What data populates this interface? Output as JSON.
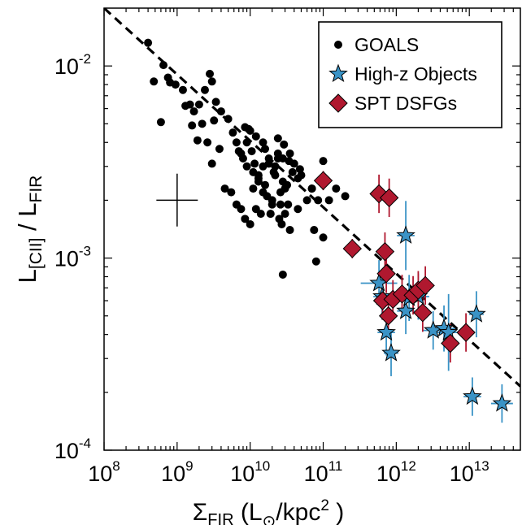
{
  "chart_data": {
    "type": "scatter",
    "title": "",
    "xlabel": {
      "main": "Σ",
      "sub": "FIR",
      "rest": " (L",
      "odot": "⊙",
      "unit": "/kpc",
      "sup": "2",
      "close": " )"
    },
    "ylabel": {
      "l1": "L",
      "sub1": "[CII]",
      "slash": " / L",
      "sub2": "FIR"
    },
    "x_scale": "log",
    "y_scale": "log",
    "xlim": [
      100000000,
      50000000000000
    ],
    "ylim": [
      0.0001,
      0.02
    ],
    "x_ticks": [
      {
        "value": 100000000,
        "base": "10",
        "exp": "8"
      },
      {
        "value": 1000000000,
        "base": "10",
        "exp": "9"
      },
      {
        "value": 10000000000,
        "base": "10",
        "exp": "10"
      },
      {
        "value": 100000000000,
        "base": "10",
        "exp": "11"
      },
      {
        "value": 1000000000000,
        "base": "10",
        "exp": "12"
      },
      {
        "value": 10000000000000,
        "base": "10",
        "exp": "13"
      }
    ],
    "y_ticks": [
      {
        "value": 0.0001,
        "base": "10",
        "exp": "-4"
      },
      {
        "value": 0.001,
        "base": "10",
        "exp": "-3"
      },
      {
        "value": 0.01,
        "base": "10",
        "exp": "-2"
      }
    ],
    "grid": false,
    "legend_position": "top-right",
    "fit_line": {
      "style": "dashed",
      "x": [
        100000000,
        50000000000000
      ],
      "y": [
        0.02,
        0.000215
      ]
    },
    "typical_error_bar": {
      "x": 1000000000,
      "y": 0.002,
      "x_range": [
        520000000,
        1920000000
      ],
      "y_range": [
        0.00146,
        0.00275
      ]
    },
    "series": [
      {
        "name": "GOALS",
        "marker": "circle",
        "color": "#000000",
        "x": [
          400000000.0,
          480000000.0,
          650000000.0,
          750000000.0,
          800000000.0,
          600000000.0,
          950000000.0,
          1200000000.0,
          1300000000.0,
          1500000000.0,
          1700000000.0,
          2000000000.0,
          2400000000.0,
          2800000000.0,
          3000000000.0,
          3400000000.0,
          4000000000.0,
          2200000000.0,
          1600000000.0,
          1900000000.0,
          2600000000.0,
          3200000000.0,
          3800000000.0,
          5000000000.0,
          5800000000.0,
          6500000000.0,
          7500000000.0,
          9000000000.0,
          10500000000.0,
          11500000000.0,
          13000000000.0,
          15000000000.0,
          18000000000.0,
          21000000000.0,
          24000000000.0,
          28000000000.0,
          34000000000.0,
          30000000000.0,
          45000000000.0,
          60000000000.0,
          70000000000.0,
          85000000000.0,
          100000000000.0,
          150000000000.0,
          200000000000.0,
          100000000000.0,
          3000000000.0,
          4500000000.0,
          5500000000.0,
          6500000000.0,
          7500000000.0,
          8500000000.0,
          10000000000.0,
          12000000000.0,
          14000000000.0,
          17000000000.0,
          20000000000.0,
          25000000000.0,
          30000000000.0,
          35000000000.0,
          27000000000.0,
          20000000000.0,
          16000000000.0,
          13000000000.0,
          11000000000.0,
          9000000000.0,
          8000000000.0,
          7000000000.0,
          18000000000.0,
          22000000000.0,
          26000000000.0,
          32000000000.0,
          38000000000.0,
          50000000000.0,
          15000000000.0,
          12000000000.0,
          10000000000.0,
          8500000000.0,
          24000000000.0,
          29000000000.0,
          35000000000.0,
          40000000000.0,
          48000000000.0,
          26000000000.0,
          19000000000.0,
          15000000000.0,
          13000000000.0,
          11000000000.0,
          9500000000.0,
          16000000000.0,
          22000000000.0,
          28000000000.0,
          33000000000.0,
          19000000000.0,
          24000000000.0,
          75000000000.0,
          120000000000.0,
          45000000000.0,
          70000000000.0,
          28000000000.0,
          80000000000.0
        ],
        "y": [
          0.0132,
          0.0083,
          0.0101,
          0.0087,
          0.0082,
          0.0051,
          0.008,
          0.0075,
          0.0062,
          0.0063,
          0.0058,
          0.0063,
          0.0075,
          0.0091,
          0.0083,
          0.0065,
          0.0058,
          0.005,
          0.0049,
          0.0041,
          0.004,
          0.0052,
          0.0037,
          0.0053,
          0.0045,
          0.004,
          0.0035,
          0.004,
          0.0036,
          0.0031,
          0.0027,
          0.003,
          0.0033,
          0.0028,
          0.0035,
          0.0033,
          0.0032,
          0.0023,
          0.0026,
          0.002,
          0.0023,
          0.002,
          0.0032,
          0.0023,
          0.0021,
          0.00128,
          0.0031,
          0.0023,
          0.0022,
          0.0019,
          0.0018,
          0.0016,
          0.0015,
          0.0018,
          0.0017,
          0.0021,
          0.0019,
          0.0016,
          0.0017,
          0.0014,
          0.0015,
          0.002,
          0.0024,
          0.0026,
          0.0028,
          0.003,
          0.0033,
          0.0036,
          0.0031,
          0.0027,
          0.0022,
          0.0024,
          0.0028,
          0.0027,
          0.004,
          0.0043,
          0.0046,
          0.0048,
          0.0042,
          0.0039,
          0.0035,
          0.0031,
          0.0029,
          0.0019,
          0.0017,
          0.0022,
          0.0025,
          0.0023,
          0.0047,
          0.0037,
          0.003,
          0.0025,
          0.0019,
          0.0017,
          0.0033,
          0.0014,
          0.002,
          0.0018,
          0.0023,
          0.00082,
          0.00096
        ],
        "size": 5
      },
      {
        "name": "High-z Objects",
        "marker": "star",
        "color": "#3a93c6",
        "x": [
          580000000000.0,
          640000000000.0,
          730000000000.0,
          850000000000.0,
          1350000000000.0,
          1350000000000.0,
          1500000000000.0,
          2000000000000.0,
          3200000000000.0,
          4500000000000.0,
          5200000000000.0,
          11000000000000.0,
          12500000000000.0,
          28000000000000.0
        ],
        "y": [
          0.00074,
          0.00063,
          0.00041,
          0.00032,
          0.00131,
          0.00053,
          0.00062,
          0.00063,
          0.00042,
          0.00043,
          0.00041,
          0.00019,
          0.00051,
          0.000175
        ],
        "xerr_dex": [
          0.25,
          0.12,
          0.12,
          0.1,
          0.12,
          0.12,
          0.15,
          0.15,
          0.15,
          0.15,
          0.2,
          0.12,
          0.1,
          0.15
        ],
        "yerr_dex": [
          0.12,
          0.12,
          0.12,
          0.12,
          0.18,
          0.12,
          0.12,
          0.12,
          0.1,
          0.12,
          0.2,
          0.1,
          0.12,
          0.1
        ]
      },
      {
        "name": "SPT DSFGs",
        "marker": "diamond",
        "color": "#b0182f",
        "x": [
          100000000000.0,
          250000000000.0,
          580000000000.0,
          800000000000.0,
          700000000000.0,
          730000000000.0,
          780000000000.0,
          650000000000.0,
          900000000000.0,
          1200000000000.0,
          1700000000000.0,
          2000000000000.0,
          2500000000000.0,
          2300000000000.0,
          5500000000000.0,
          9000000000000.0
        ],
        "y": [
          0.00253,
          0.00112,
          0.00216,
          0.00206,
          0.00108,
          0.00083,
          0.0005,
          0.0006,
          0.00061,
          0.00065,
          0.00064,
          0.00068,
          0.00072,
          0.00052,
          0.00036,
          0.00041
        ],
        "yerr_dex": [
          0.05,
          0.05,
          0.1,
          0.1,
          0.1,
          0.1,
          0.1,
          0.1,
          0.1,
          0.1,
          0.1,
          0.1,
          0.1,
          0.1,
          0.1,
          0.1
        ]
      }
    ]
  }
}
